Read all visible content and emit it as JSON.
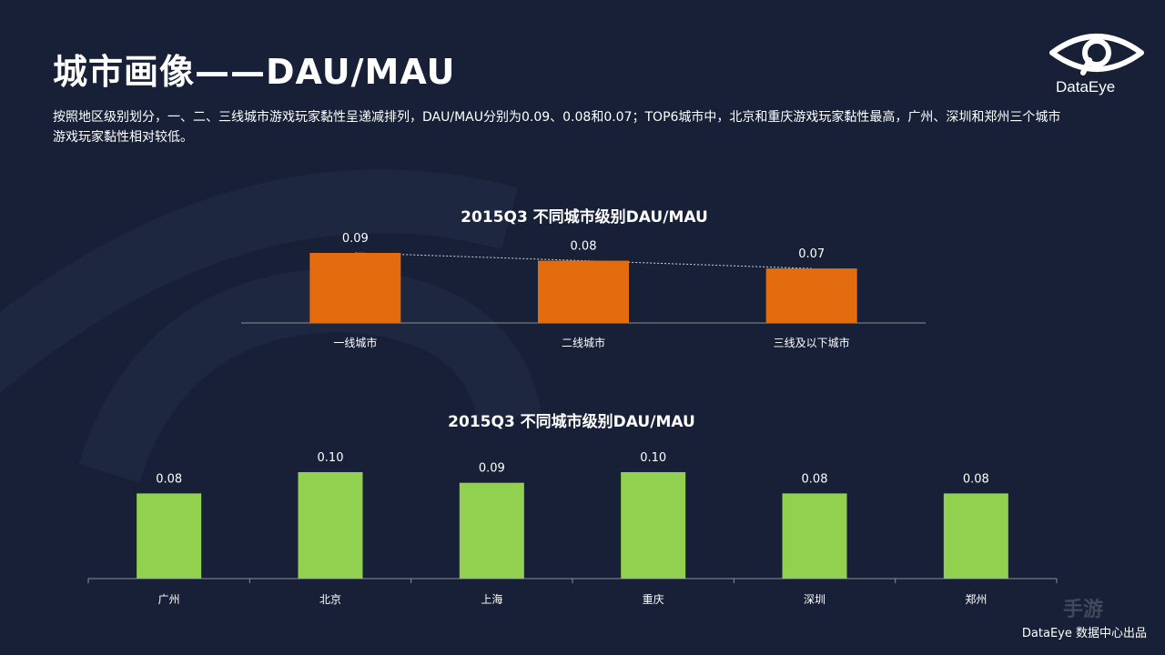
{
  "header": {
    "title": "城市画像——DAU/MAU",
    "description": "按照地区级别划分，一、二、三线城市游戏玩家黏性呈递减排列，DAU/MAU分别为0.09、0.08和0.07；TOP6城市中，北京和重庆游戏玩家黏性最高，广州、深圳和郑州三个城市游戏玩家黏性相对较低。"
  },
  "logo": {
    "text": "DataEye",
    "icon": "eye-logo-icon"
  },
  "footer": {
    "text": "DataEye 数据中心出品"
  },
  "watermark": {
    "text": "手游"
  },
  "colors": {
    "background": "#172036",
    "orange": "#E36C0F",
    "green": "#92D050",
    "axis": "#8a8f99"
  },
  "chart_data": [
    {
      "type": "bar",
      "title": "2015Q3  不同城市级别DAU/MAU",
      "categories": [
        "一线城市",
        "二线城市",
        "三线及以下城市"
      ],
      "values": [
        0.09,
        0.08,
        0.07
      ],
      "value_labels": [
        "0.09",
        "0.08",
        "0.07"
      ],
      "trend_line": true,
      "color": "#E36C0F",
      "xlabel": "",
      "ylabel": "",
      "ylim": [
        0,
        0.09
      ],
      "grid": false,
      "legend": "none"
    },
    {
      "type": "bar",
      "title": "2015Q3   不同城市级别DAU/MAU",
      "categories": [
        "广州",
        "北京",
        "上海",
        "重庆",
        "深圳",
        "郑州"
      ],
      "values": [
        0.08,
        0.1,
        0.09,
        0.1,
        0.08,
        0.08
      ],
      "value_labels": [
        "0.08",
        "0.10",
        "0.09",
        "0.10",
        "0.08",
        "0.08"
      ],
      "color": "#92D050",
      "xlabel": "",
      "ylabel": "",
      "ylim": [
        0,
        0.1
      ],
      "grid": false,
      "legend": "none"
    }
  ]
}
